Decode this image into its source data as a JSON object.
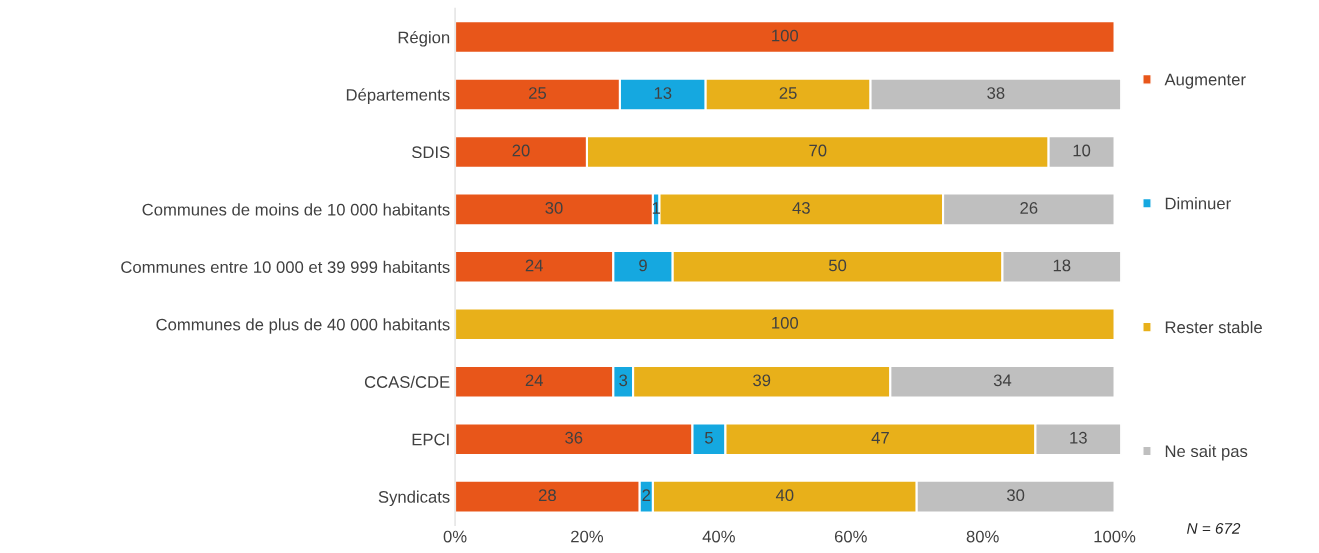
{
  "chart_data": {
    "type": "bar",
    "orientation": "horizontal",
    "stacked": true,
    "data_labels": true,
    "grid": false,
    "legend": "right",
    "categories": [
      "Région",
      "Départements",
      "SDIS",
      "Communes de moins de 10 000 habitants",
      "Communes entre 10 000 et 39 999 habitants",
      "Communes de plus de 40 000 habitants",
      "CCAS/CDE",
      "EPCI",
      "Syndicats"
    ],
    "series": [
      {
        "name": "Augmenter",
        "color": "#e8561a",
        "values": [
          100,
          25,
          20,
          30,
          24,
          null,
          24,
          36,
          28
        ]
      },
      {
        "name": "Diminuer",
        "color": "#15a8e0",
        "values": [
          null,
          13,
          null,
          1,
          9,
          null,
          3,
          5,
          2
        ]
      },
      {
        "name": "Rester stable",
        "color": "#e8b01a",
        "values": [
          null,
          25,
          70,
          43,
          50,
          100,
          39,
          47,
          40
        ]
      },
      {
        "name": "Ne sait pas",
        "color": "#bfbfbf",
        "values": [
          null,
          38,
          10,
          26,
          18,
          null,
          34,
          13,
          30
        ]
      }
    ],
    "xlim": [
      0,
      101
    ],
    "xticks": [
      {
        "value": 0,
        "label": "0%"
      },
      {
        "value": 20,
        "label": "20%"
      },
      {
        "value": 40,
        "label": "40%"
      },
      {
        "value": 60,
        "label": "60%"
      },
      {
        "value": 80,
        "label": "80%"
      },
      {
        "value": 100,
        "label": "100%"
      }
    ],
    "annotations": [
      "N = 672"
    ]
  }
}
